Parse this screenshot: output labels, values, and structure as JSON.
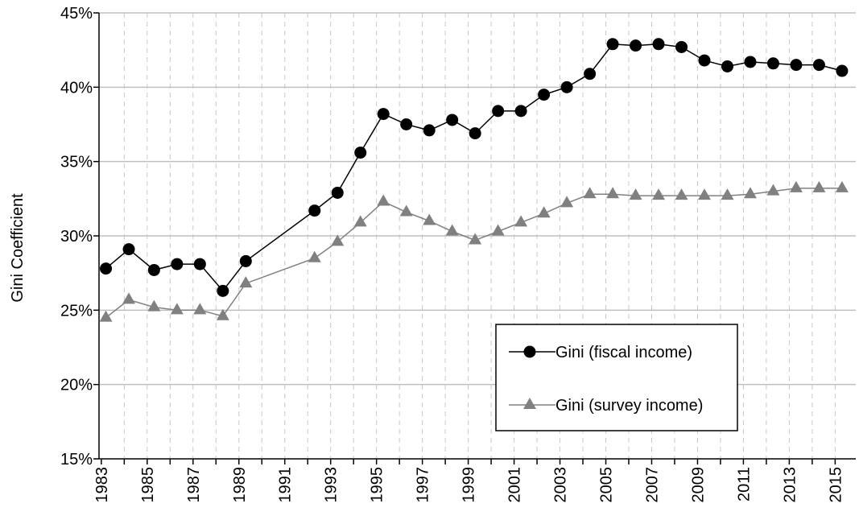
{
  "chart_data": {
    "type": "line",
    "title": "",
    "ylabel": "Gini Coefficient",
    "xlabel": "",
    "ylim": [
      15,
      45
    ],
    "y_ticks": [
      15,
      20,
      25,
      30,
      35,
      40,
      45
    ],
    "y_tick_labels": [
      "15%",
      "20%",
      "25%",
      "30%",
      "35%",
      "40%",
      "45%"
    ],
    "xlim": [
      1982.9,
      1983.0,
      2015.9
    ],
    "x_ticks": [
      1983,
      1985,
      1987,
      1989,
      1991,
      1993,
      1995,
      1997,
      1999,
      2001,
      2003,
      2005,
      2007,
      2009,
      2011,
      2013,
      2015
    ],
    "x_tick_labels": [
      "1983",
      "1985",
      "1987",
      "1989",
      "1991",
      "1993",
      "1995",
      "1997",
      "1999",
      "2001",
      "2003",
      "2005",
      "2007",
      "2009",
      "2011",
      "2013",
      "2015"
    ],
    "grid": "on",
    "legend_position": "bottom-right",
    "series": [
      {
        "name": "Gini (fiscal income)",
        "color": "#000000",
        "marker": "circle",
        "x": [
          1983.2,
          1984.2,
          1985.3,
          1986.3,
          1987.3,
          1988.3,
          1989.3,
          1992.3,
          1993.3,
          1994.3,
          1995.3,
          1996.3,
          1997.3,
          1998.3,
          1999.3,
          2000.3,
          2001.3,
          2002.3,
          2003.3,
          2004.3,
          2005.3,
          2006.3,
          2007.3,
          2008.3,
          2009.3,
          2010.3,
          2011.3,
          2012.3,
          2013.3,
          2014.3,
          2015.3
        ],
        "y": [
          27.8,
          29.1,
          27.7,
          28.1,
          28.1,
          26.3,
          28.3,
          31.7,
          32.9,
          35.6,
          38.2,
          37.5,
          37.1,
          37.8,
          36.9,
          38.4,
          38.4,
          39.5,
          40.0,
          40.9,
          42.9,
          42.8,
          42.9,
          42.7,
          41.8,
          41.4,
          41.7,
          41.6,
          41.5,
          41.5,
          41.1
        ]
      },
      {
        "name": "Gini (survey income)",
        "color": "#808080",
        "marker": "triangle",
        "x": [
          1983.2,
          1984.2,
          1985.3,
          1986.3,
          1987.3,
          1988.3,
          1989.3,
          1992.3,
          1993.3,
          1994.3,
          1995.3,
          1996.3,
          1997.3,
          1998.3,
          1999.3,
          2000.3,
          2001.3,
          2002.3,
          2003.3,
          2004.3,
          2005.3,
          2006.3,
          2007.3,
          2008.3,
          2009.3,
          2010.3,
          2011.3,
          2012.3,
          2013.3,
          2014.3,
          2015.3
        ],
        "y": [
          24.5,
          25.7,
          25.2,
          25.0,
          25.0,
          24.6,
          26.8,
          28.5,
          29.6,
          30.9,
          32.3,
          31.6,
          31.0,
          30.3,
          29.7,
          30.3,
          30.9,
          31.5,
          32.2,
          32.8,
          32.8,
          32.7,
          32.7,
          32.7,
          32.7,
          32.7,
          32.8,
          33.0,
          33.2,
          33.2,
          33.2
        ]
      }
    ]
  }
}
